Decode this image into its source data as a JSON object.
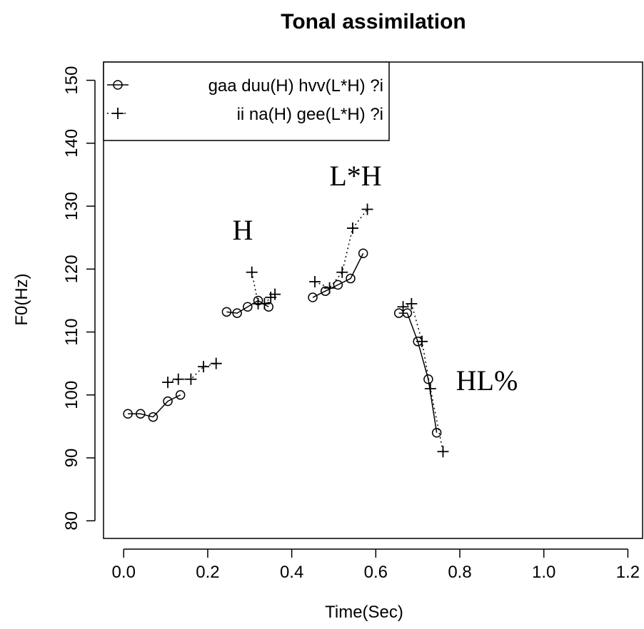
{
  "chart_data": {
    "type": "line",
    "title": "Tonal assimilation",
    "x_label": "Time(Sec)",
    "y_label": "F0(Hz)",
    "xlim": [
      -0.048,
      1.235
    ],
    "ylim": [
      77.2,
      152.9
    ],
    "xticks": [
      {
        "value": 0,
        "label": "0.0"
      },
      0.2,
      0.4,
      0.6,
      0.8,
      {
        "value": 1,
        "label": "1.0"
      },
      1.2
    ],
    "yticks": [
      80,
      90,
      100,
      110,
      120,
      130,
      140,
      150
    ],
    "legend": "top-left",
    "annotations": [
      "H",
      "L*H",
      "HL%"
    ],
    "series": [
      {
        "name": "gaa duu(H) hvv(L*H) ?i",
        "color": "#000000",
        "marker": "circle",
        "linestyle": "solid",
        "x": [
          0.01,
          0.04,
          0.07,
          0.105,
          0.135,
          null,
          0.245,
          0.27,
          0.295,
          0.32,
          0.345,
          null,
          0.45,
          0.48,
          0.51,
          0.54,
          0.57,
          null,
          0.655,
          0.675,
          0.7,
          0.725,
          0.745
        ],
        "values": [
          97,
          97,
          96.5,
          99,
          100,
          null,
          113.2,
          113,
          114,
          115,
          114,
          null,
          115.5,
          116.5,
          117.5,
          118.5,
          122.5,
          null,
          113,
          113,
          108.5,
          102.5,
          94
        ]
      },
      {
        "name": "ii na(H) gee(L*H) ?i",
        "color": "#000000",
        "marker": "plus",
        "linestyle": "dotted",
        "x": [
          0.105,
          0.13,
          0.16,
          0.19,
          0.22,
          null,
          0.305,
          0.32,
          0.335,
          0.35,
          0.36,
          null,
          0.455,
          0.49,
          0.52,
          0.545,
          0.58,
          null,
          0.665,
          0.685,
          0.71,
          0.73,
          0.76
        ],
        "values": [
          102,
          102.5,
          102.5,
          104.5,
          105,
          null,
          119.5,
          114.5,
          114.5,
          115.5,
          116,
          null,
          118,
          117,
          119.5,
          126.5,
          129.5,
          null,
          114,
          114.5,
          108.5,
          101,
          91
        ]
      }
    ]
  }
}
